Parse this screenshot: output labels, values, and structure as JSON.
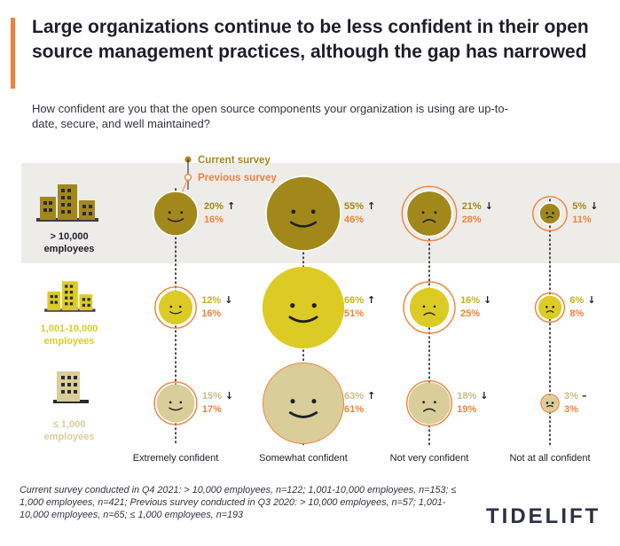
{
  "header": {
    "title": "Large organizations continue to be less confident in their open source management practices, although the gap has narrowed",
    "subtitle": "How confident are you that the open source components your organization is using are up-to-date, secure, and well maintained?"
  },
  "legend": {
    "current": "Current survey",
    "previous": "Previous survey"
  },
  "colors": {
    "previous_ring": "#f0823a",
    "current_text": "#a2881a",
    "previous_text": "#f0823a",
    "band": "#eeece9",
    "dark": "#1e1e2a"
  },
  "chart_data": {
    "type": "bubble",
    "title": "Large organizations continue to be less confident in their open source management practices, although the gap has narrowed",
    "categories": [
      "Extremely confident",
      "Somewhat confident",
      "Not very confident",
      "Not at all confident"
    ],
    "rows": [
      {
        "label": [
          "> 10,000",
          "employees"
        ],
        "color": "#a2881a",
        "current": [
          20,
          55,
          21,
          5
        ],
        "previous": [
          16,
          46,
          28,
          11
        ],
        "trend": [
          "↑",
          "↑",
          "↓",
          "↓"
        ]
      },
      {
        "label": [
          "1,001-10,000",
          "employees"
        ],
        "color": "#dccb24",
        "current": [
          12,
          66,
          16,
          6
        ],
        "previous": [
          16,
          51,
          25,
          8
        ],
        "trend": [
          "↓",
          "↑",
          "↓",
          "↓"
        ]
      },
      {
        "label": [
          "≤ 1,000",
          "employees"
        ],
        "color": "#d9cd99",
        "current": [
          15,
          63,
          18,
          3
        ],
        "previous": [
          17,
          61,
          19,
          3
        ],
        "trend": [
          "↓",
          "↑",
          "↓",
          "–"
        ]
      }
    ],
    "unit": "%"
  },
  "footnote": "Current survey conducted in Q4 2021: > 10,000 employees, n=122; 1,001-10,000 employees, n=153; ≤ 1,000 employees, n=421; Previous survey conducted in Q3 2020: > 10,000 employees, n=57; 1,001-10,000 employees, n=65; ≤ 1,000 employees, n=193",
  "brand": {
    "logo_text": "TIDELIFT"
  }
}
